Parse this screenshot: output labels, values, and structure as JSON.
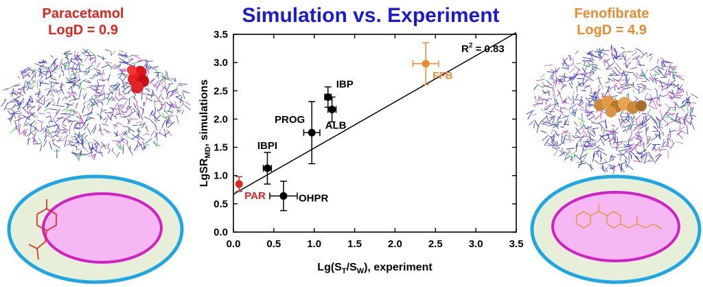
{
  "left_panel": {
    "name": "Paracetamol",
    "logd": "LogD = 0.9",
    "color": "#e0241b"
  },
  "right_panel": {
    "name": "Fenofibrate",
    "logd": "LogD = 4.9",
    "color": "#ee8a2e"
  },
  "colors": {
    "micelle_shell": "#e8efd8",
    "micelle_outline": "#1ea7e6",
    "micelle_core": "#f6b8f2",
    "micelle_core_outline": "#d21fc6",
    "point_default": "#000000",
    "title": "#1a1ad6"
  },
  "chart_data": {
    "type": "scatter",
    "title": "Simulation vs. Experiment",
    "xlabel_parts": [
      "Lg(S",
      "T",
      "/S",
      "W",
      "), experiment"
    ],
    "ylabel_parts": [
      "LgSR",
      "MD",
      ", simulations"
    ],
    "xlim": [
      0.0,
      3.5
    ],
    "ylim": [
      0.0,
      3.5
    ],
    "xticks": [
      "0.0",
      "0.5",
      "1.0",
      "1.5",
      "2.0",
      "2.5",
      "3.0",
      "3.5"
    ],
    "yticks": [
      "0.0",
      "0.5",
      "1.0",
      "1.5",
      "2.0",
      "2.5",
      "3.0",
      "3.5"
    ],
    "grid": false,
    "annotation": {
      "prefix": "R",
      "sup": "2",
      "suffix": " = 0.83"
    },
    "fit_line": {
      "x": [
        0.0,
        3.5
      ],
      "y": [
        0.67,
        3.53
      ]
    },
    "points": [
      {
        "label": "PAR",
        "x": 0.07,
        "y": 0.85,
        "xerr": 0.0,
        "yerr": 0.13,
        "color": "#e0241b"
      },
      {
        "label": "IBPI",
        "x": 0.42,
        "y": 1.13,
        "xerr": 0.05,
        "yerr": 0.28,
        "color": "#000000"
      },
      {
        "label": "OHPR",
        "x": 0.62,
        "y": 0.64,
        "xerr": 0.17,
        "yerr": 0.26,
        "color": "#000000"
      },
      {
        "label": "PROG",
        "x": 0.97,
        "y": 1.76,
        "xerr": 0.1,
        "yerr": 0.55,
        "color": "#000000"
      },
      {
        "label": "IBP",
        "x": 1.17,
        "y": 2.39,
        "xerr": 0.04,
        "yerr": 0.18,
        "color": "#000000"
      },
      {
        "label": "ALB",
        "x": 1.22,
        "y": 2.17,
        "xerr": 0.05,
        "yerr": 0.22,
        "color": "#000000"
      },
      {
        "label": "FFB",
        "x": 2.38,
        "y": 2.98,
        "xerr": 0.16,
        "yerr": 0.37,
        "color": "#ee8a2e"
      }
    ]
  }
}
